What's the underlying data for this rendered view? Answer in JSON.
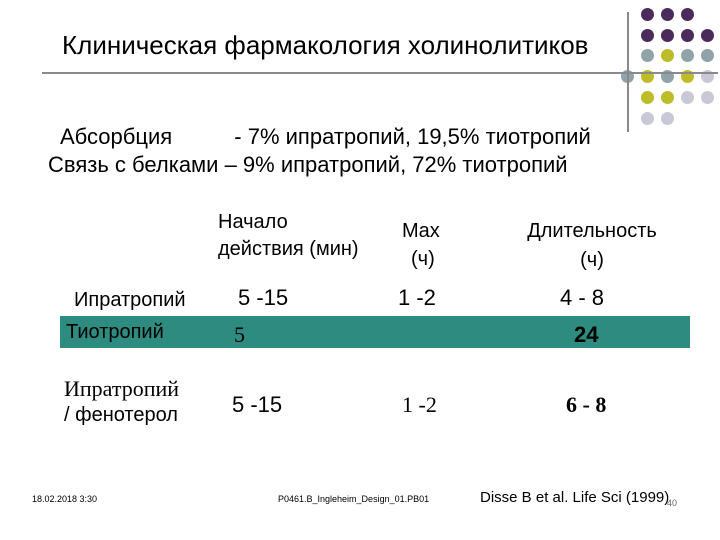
{
  "slide": {
    "title": "Клиническая фармакология холинолитиков",
    "absorption": {
      "label": "Абсорбция",
      "value": "- 7% ипратропий, 19,5% тиотропий"
    },
    "protein_binding": "Связь с белками – 9% ипратропий, 72%  тиотропий",
    "decoration": {
      "dot_colors": [
        "#4b2a5c",
        "#8fa3a8",
        "#bdbd2a",
        "#c8c8d6"
      ]
    }
  },
  "table": {
    "headers": {
      "onset_line1": "Начало",
      "onset_line2": "действия (мин)",
      "max_line1": "Max",
      "max_line2": "(ч)",
      "duration_line1": "Длительность",
      "duration_line2": "(ч)"
    },
    "rows": [
      {
        "name": "Ипратропий",
        "onset": "5 -15",
        "max": "1 -2",
        "duration": "4 - 8"
      },
      {
        "name": "Тиотропий",
        "onset": "5",
        "max": "",
        "duration": "24",
        "highlight_color": "#2e8b7f"
      },
      {
        "name_line1": "Ипратропий",
        "name_line2": "/ фенотерол",
        "onset": "5 -15",
        "max": "1 -2",
        "duration": "6 - 8"
      }
    ]
  },
  "footer": {
    "date": "18.02.2018 3:30",
    "file": "P0461.B_Ingleheim_Design_01.PB01",
    "citation": "Disse B et al. Life Sci (1999)",
    "page_number": "40"
  }
}
